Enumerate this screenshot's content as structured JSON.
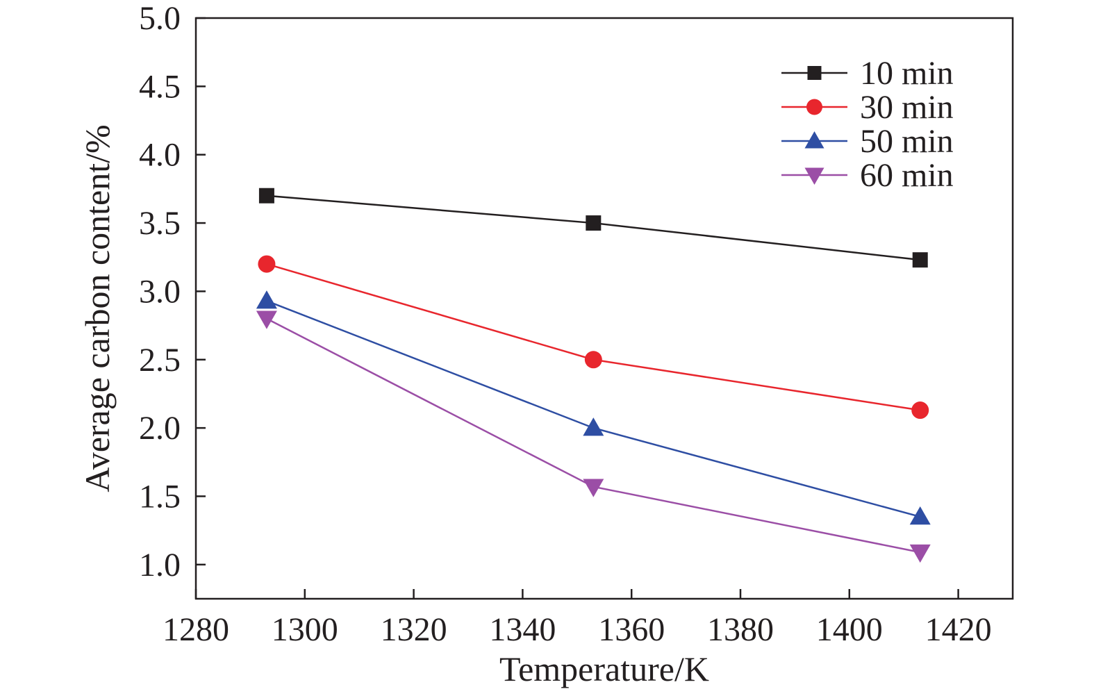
{
  "chart_data": {
    "type": "line",
    "title": "",
    "xlabel": "Temperature/K",
    "ylabel": "Average carbon content/%",
    "xlim": [
      1280,
      1430
    ],
    "ylim": [
      0.75,
      5.0
    ],
    "xticks": [
      1280,
      1300,
      1320,
      1340,
      1360,
      1380,
      1400,
      1420
    ],
    "xtick_labels": [
      "1280",
      "1300",
      "1320",
      "1340",
      "1360",
      "1380",
      "1400",
      "1420"
    ],
    "yticks": [
      1.0,
      1.5,
      2.0,
      2.5,
      3.0,
      3.5,
      4.0,
      4.5,
      5.0
    ],
    "ytick_labels": [
      "1.0",
      "1.5",
      "2.0",
      "2.5",
      "3.0",
      "3.5",
      "4.0",
      "4.5",
      "5.0"
    ],
    "grid": false,
    "legend_position": "top-right",
    "x": [
      1293,
      1353,
      1413
    ],
    "series": [
      {
        "name": "10 min",
        "values": [
          3.7,
          3.5,
          3.23
        ],
        "color": "#231f20",
        "marker": "square"
      },
      {
        "name": "30 min",
        "values": [
          3.2,
          2.5,
          2.13
        ],
        "color": "#e8262d",
        "marker": "circle"
      },
      {
        "name": "50 min",
        "values": [
          2.93,
          2.0,
          1.35
        ],
        "color": "#2e4ea3",
        "marker": "triangle-up"
      },
      {
        "name": "60 min",
        "values": [
          2.8,
          1.57,
          1.09
        ],
        "color": "#9b4ea6",
        "marker": "triangle-down"
      }
    ]
  }
}
